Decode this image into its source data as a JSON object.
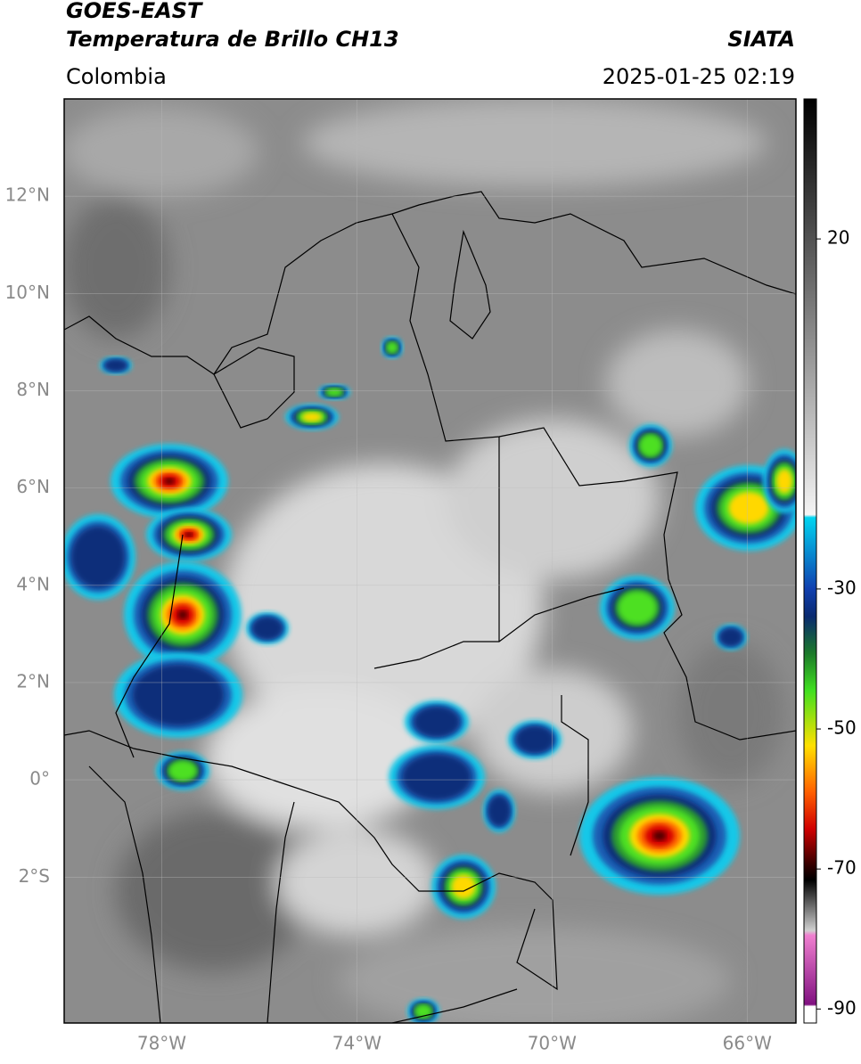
{
  "header": {
    "title": "GOES-EAST",
    "subtitle": "Temperatura de Brillo CH13",
    "region": "Colombia",
    "source": "SIATA",
    "timestamp": "2025-01-25 02:19"
  },
  "map": {
    "xlim": [
      -80,
      -65
    ],
    "ylim": [
      -5,
      14
    ],
    "yticks": [
      {
        "value": 12,
        "label": "12°N"
      },
      {
        "value": 10,
        "label": "10°N"
      },
      {
        "value": 8,
        "label": "8°N"
      },
      {
        "value": 6,
        "label": "6°N"
      },
      {
        "value": 4,
        "label": "4°N"
      },
      {
        "value": 2,
        "label": "2°N"
      },
      {
        "value": 0,
        "label": "0°"
      },
      {
        "value": -2,
        "label": "2°S"
      }
    ],
    "xticks": [
      {
        "value": -78,
        "label": "78°W"
      },
      {
        "value": -74,
        "label": "74°W"
      },
      {
        "value": -70,
        "label": "70°W"
      },
      {
        "value": -66,
        "label": "66°W"
      }
    ]
  },
  "colorbar": {
    "lim": [
      -92,
      40
    ],
    "ticks": [
      20,
      -30,
      -50,
      -70,
      -90
    ]
  }
}
